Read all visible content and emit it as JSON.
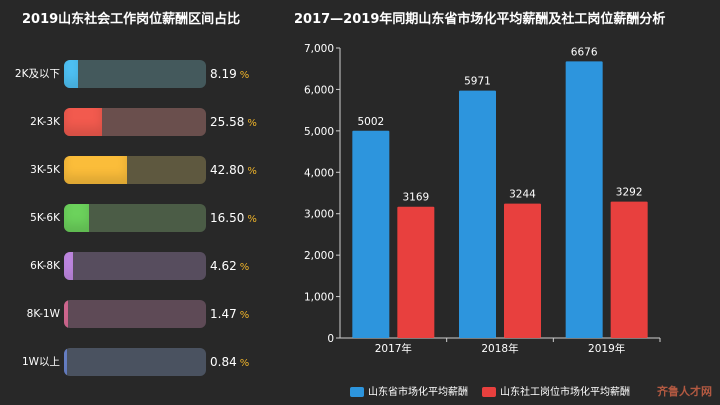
{
  "left_title": "2019山东社会工作岗位薪酬区间占比",
  "right_title": "2017—2019年同期山东省市场化平均薪酬及社工岗位薪酬分析",
  "watermark": "齐鲁人才网",
  "chart_data": [
    {
      "type": "bar",
      "orientation": "horizontal",
      "title": "2019山东社会工作岗位薪酬区间占比",
      "categories": [
        "2K及以下",
        "2K-3K",
        "3K-5K",
        "5K-6K",
        "6K-8K",
        "8K-1W",
        "1W以上"
      ],
      "values": [
        8.19,
        25.58,
        42.8,
        16.5,
        4.62,
        1.47,
        0.84
      ],
      "value_labels": [
        "8.19",
        "25.58",
        "42.80",
        "16.50",
        "4.62",
        "1.47",
        "0.84"
      ],
      "unit": "%",
      "xlim": [
        0,
        100
      ],
      "colors": [
        "#4fc3f7",
        "#f25a4e",
        "#fbbd3a",
        "#6cd25c",
        "#c58be8",
        "#e06f9a",
        "#6f8ad6"
      ],
      "track_colors": [
        "#44595c",
        "#6a4f4d",
        "#5e583f",
        "#4b5c46",
        "#574d5e",
        "#5e4a56",
        "#4a5260"
      ]
    },
    {
      "type": "bar",
      "title": "2017—2019年同期山东省市场化平均薪酬及社工岗位薪酬分析",
      "categories": [
        "2017年",
        "2018年",
        "2019年"
      ],
      "series": [
        {
          "name": "山东省市场化平均薪酬",
          "values": [
            5002,
            5971,
            6676
          ],
          "color": "#2d95dd"
        },
        {
          "name": "山东社工岗位市场化平均薪酬",
          "values": [
            3169,
            3244,
            3292
          ],
          "color": "#e8403e"
        }
      ],
      "ylim": [
        0,
        7000
      ],
      "yticks": [
        "0",
        "1,000",
        "2,000",
        "3,000",
        "4,000",
        "5,000",
        "6,000",
        "7,000"
      ],
      "legend": "bottom",
      "grid": false
    }
  ]
}
